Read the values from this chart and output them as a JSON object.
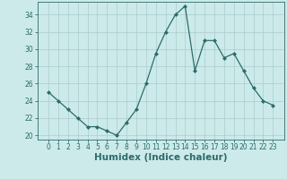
{
  "x": [
    0,
    1,
    2,
    3,
    4,
    5,
    6,
    7,
    8,
    9,
    10,
    11,
    12,
    13,
    14,
    15,
    16,
    17,
    18,
    19,
    20,
    21,
    22,
    23
  ],
  "y": [
    25,
    24,
    23,
    22,
    21,
    21,
    20.5,
    20,
    21.5,
    23,
    26,
    29.5,
    32,
    34,
    35,
    27.5,
    31,
    31,
    29,
    29.5,
    27.5,
    25.5,
    24,
    23.5
  ],
  "line_color": "#2d6b6b",
  "marker": "D",
  "marker_size": 2.0,
  "bg_color": "#cceaea",
  "grid_color": "#aacccc",
  "xlabel": "Humidex (Indice chaleur)",
  "ylim": [
    19.5,
    35.5
  ],
  "yticks": [
    20,
    22,
    24,
    26,
    28,
    30,
    32,
    34
  ],
  "xticks": [
    0,
    1,
    2,
    3,
    4,
    5,
    6,
    7,
    8,
    9,
    10,
    11,
    12,
    13,
    14,
    15,
    16,
    17,
    18,
    19,
    20,
    21,
    22,
    23
  ],
  "tick_label_fontsize": 5.5,
  "xlabel_fontsize": 7.5
}
